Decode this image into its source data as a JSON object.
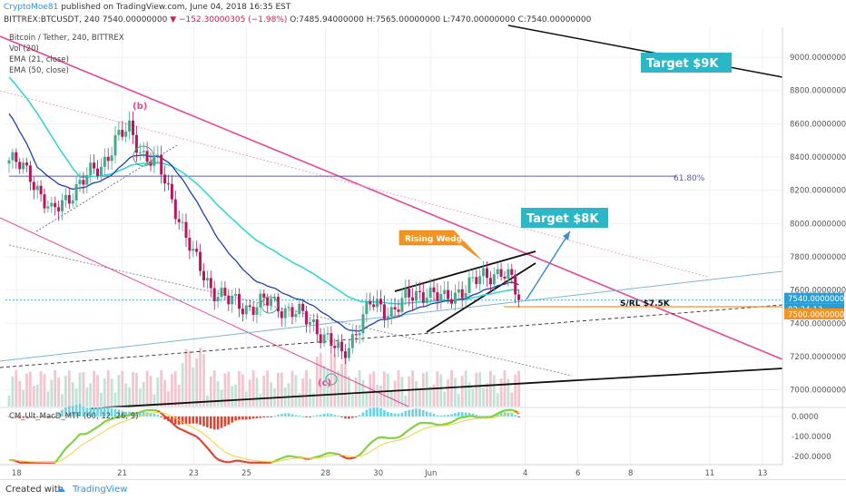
{
  "header": {
    "author": "CryptoMoe81",
    "published": "published on TradingView.com, June 04, 2018 16:35 EST",
    "symbol_line": "BITTREX:BTCUSDT, 240",
    "ohlc_last": "7540.00000000",
    "change": "−152.30000305 (−1.98%)",
    "open": "O:7485.94000000",
    "high": "H:7565.00000000",
    "low": "L:7470.00000000",
    "close": "C:7540.00000000"
  },
  "legend": {
    "title": "Bitcoin / Tether, 240, BITTREX",
    "vol": "Vol (20)",
    "ema21": "EMA (21, close)",
    "ema50": "EMA (50, close)",
    "macd": "CM_Ult_MacD_MTF (60, 12, 26, 9)"
  },
  "footer": {
    "created_with": "Created with",
    "brand": "TradingView"
  },
  "colors": {
    "up": "#46a88a",
    "down": "#b8175e",
    "ema21": "#1f3fa8",
    "ema50": "#35d6d6",
    "channel": "#e8479a",
    "annotation_box": "#2bb7c7",
    "wedge_callout": "#f39322"
  },
  "annotations": {
    "target9k": "Target $9K",
    "target8k": "Target $8K",
    "rising_wedge": "Rising Wedge",
    "srl": "S/RL $7.5K",
    "fib": "61.80%",
    "wave_b": "(b)",
    "wave_c": "(c)",
    "price_tag": "7540.00000000",
    "countdown": "02:24:13",
    "level_tag": "7500.00000000"
  },
  "chart_data": {
    "type": "candlestick",
    "title": "Bitcoin / Tether, 240, BITTREX",
    "x_ticks": [
      "18",
      "21",
      "23",
      "25",
      "28",
      "30",
      "Jun",
      "4",
      "6",
      "8",
      "11",
      "13"
    ],
    "y_ticks": [
      "9000.00000000",
      "8800.00000000",
      "8600.00000000",
      "8400.00000000",
      "8200.00000000",
      "8000.00000000",
      "7800.00000000",
      "7600.00000000",
      "7400.00000000",
      "7200.00000000",
      "7000.00000000"
    ],
    "ylim": [
      6900,
      9180
    ],
    "macd_ticks": [
      "0.0000",
      "-100.0000",
      "-200.0000"
    ],
    "macd_ylim": [
      -240,
      40
    ],
    "fib_level": {
      "label": "61.80%",
      "value": 8285
    },
    "support_level": {
      "label": "S/RL $7.5K",
      "value": 7500
    },
    "last_price": 7540,
    "anchors": [
      {
        "x": 0,
        "y": 8380
      },
      {
        "x": 6,
        "y": 8300
      },
      {
        "x": 12,
        "y": 8050
      },
      {
        "x": 18,
        "y": 8200
      },
      {
        "x": 26,
        "y": 8350
      },
      {
        "x": 30,
        "y": 8500
      },
      {
        "x": 34,
        "y": 8560
      },
      {
        "x": 38,
        "y": 8420
      },
      {
        "x": 42,
        "y": 8350
      },
      {
        "x": 47,
        "y": 8100
      },
      {
        "x": 52,
        "y": 7800
      },
      {
        "x": 57,
        "y": 7620
      },
      {
        "x": 62,
        "y": 7530
      },
      {
        "x": 68,
        "y": 7500
      },
      {
        "x": 74,
        "y": 7530
      },
      {
        "x": 80,
        "y": 7470
      },
      {
        "x": 86,
        "y": 7400
      },
      {
        "x": 90,
        "y": 7300
      },
      {
        "x": 94,
        "y": 7200
      },
      {
        "x": 98,
        "y": 7360
      },
      {
        "x": 102,
        "y": 7510
      },
      {
        "x": 108,
        "y": 7480
      },
      {
        "x": 113,
        "y": 7550
      },
      {
        "x": 118,
        "y": 7600
      },
      {
        "x": 123,
        "y": 7530
      },
      {
        "x": 127,
        "y": 7600
      },
      {
        "x": 132,
        "y": 7650
      },
      {
        "x": 136,
        "y": 7700
      },
      {
        "x": 139,
        "y": 7720
      },
      {
        "x": 142,
        "y": 7640
      },
      {
        "x": 144,
        "y": 7540
      }
    ]
  }
}
